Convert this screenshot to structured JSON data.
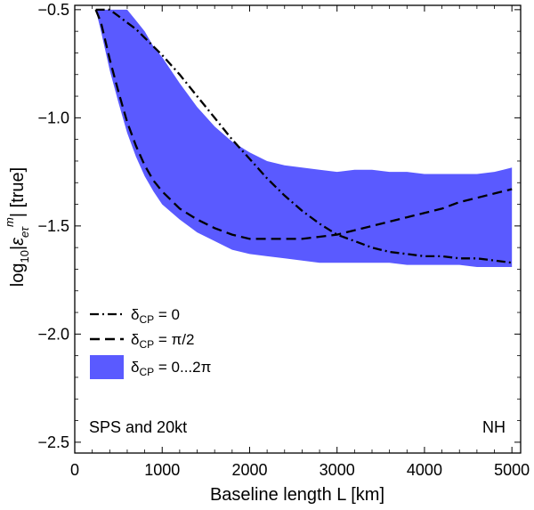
{
  "chart_data": {
    "type": "area",
    "xlabel": "Baseline length L [km]",
    "ylabel_parts": {
      "prefix": "log",
      "sub10": "10",
      "bar1": "|",
      "eps": "ε",
      "sub_etau": "eτ",
      "sup_m": "m",
      "bar2": "|",
      "suffix": " [true]"
    },
    "xlim": [
      0,
      5100
    ],
    "ylim": [
      -2.55,
      -0.48
    ],
    "x_ticks": [
      0,
      1000,
      2000,
      3000,
      4000,
      5000
    ],
    "x_tick_labels": [
      "0",
      "1000",
      "2000",
      "3000",
      "4000",
      "5000"
    ],
    "y_ticks": [
      -0.5,
      -1.0,
      -1.5,
      -2.0,
      -2.5
    ],
    "y_tick_labels": [
      "−0.5",
      "−1.0",
      "−1.5",
      "−2.0",
      "−2.5"
    ],
    "band": {
      "name": "δCP = 0...2π",
      "color": "#5a5aff",
      "x": [
        240,
        300,
        400,
        500,
        600,
        700,
        800,
        900,
        1000,
        1200,
        1400,
        1600,
        1800,
        2000,
        2200,
        2400,
        2600,
        2800,
        3000,
        3200,
        3400,
        3600,
        3800,
        4000,
        4200,
        4400,
        4600,
        4800,
        4900,
        5000
      ],
      "upper": [
        -0.5,
        -0.5,
        -0.5,
        -0.5,
        -0.5,
        -0.55,
        -0.6,
        -0.67,
        -0.72,
        -0.84,
        -0.95,
        -1.04,
        -1.11,
        -1.16,
        -1.2,
        -1.22,
        -1.23,
        -1.24,
        -1.25,
        -1.24,
        -1.24,
        -1.25,
        -1.25,
        -1.26,
        -1.26,
        -1.26,
        -1.26,
        -1.25,
        -1.24,
        -1.23
      ],
      "lower": [
        -0.5,
        -0.6,
        -0.78,
        -0.93,
        -1.07,
        -1.18,
        -1.27,
        -1.34,
        -1.4,
        -1.47,
        -1.53,
        -1.57,
        -1.61,
        -1.63,
        -1.64,
        -1.65,
        -1.66,
        -1.67,
        -1.67,
        -1.67,
        -1.67,
        -1.67,
        -1.68,
        -1.68,
        -1.68,
        -1.68,
        -1.69,
        -1.69,
        -1.69,
        -1.69
      ]
    },
    "series": [
      {
        "name": "δCP = 0",
        "style": "dashdot",
        "x": [
          240,
          300,
          400,
          500,
          600,
          700,
          800,
          900,
          1000,
          1200,
          1400,
          1600,
          1800,
          2000,
          2200,
          2400,
          2600,
          2800,
          3000,
          3200,
          3400,
          3600,
          3800,
          4000,
          4200,
          4400,
          4600,
          4800,
          5000
        ],
        "values": [
          -0.5,
          -0.5,
          -0.5,
          -0.53,
          -0.56,
          -0.59,
          -0.63,
          -0.67,
          -0.71,
          -0.8,
          -0.9,
          -1.0,
          -1.1,
          -1.19,
          -1.28,
          -1.36,
          -1.43,
          -1.49,
          -1.54,
          -1.57,
          -1.6,
          -1.62,
          -1.63,
          -1.64,
          -1.64,
          -1.65,
          -1.65,
          -1.66,
          -1.67
        ]
      },
      {
        "name": "δCP = π/2",
        "style": "dashed",
        "x": [
          240,
          300,
          400,
          500,
          600,
          700,
          800,
          900,
          1000,
          1200,
          1400,
          1600,
          1800,
          2000,
          2200,
          2400,
          2600,
          2800,
          3000,
          3200,
          3400,
          3600,
          3800,
          4000,
          4200,
          4400,
          4600,
          4800,
          5000
        ],
        "values": [
          -0.5,
          -0.56,
          -0.73,
          -0.88,
          -1.02,
          -1.13,
          -1.22,
          -1.29,
          -1.34,
          -1.42,
          -1.47,
          -1.51,
          -1.54,
          -1.56,
          -1.56,
          -1.56,
          -1.56,
          -1.55,
          -1.54,
          -1.52,
          -1.5,
          -1.48,
          -1.46,
          -1.44,
          -1.42,
          -1.39,
          -1.37,
          -1.35,
          -1.33
        ]
      }
    ],
    "legend": {
      "placement": "lower-left",
      "items": [
        {
          "style": "dashdot",
          "delta": "δ",
          "sub": "CP",
          "value": " = 0"
        },
        {
          "style": "dashed",
          "delta": "δ",
          "sub": "CP",
          "value": " = π/2"
        },
        {
          "style": "band",
          "delta": "δ",
          "sub": "CP",
          "value": " = 0...2π"
        }
      ]
    },
    "annotations": {
      "bottom_left": "SPS and 20kt",
      "bottom_right": "NH"
    }
  }
}
